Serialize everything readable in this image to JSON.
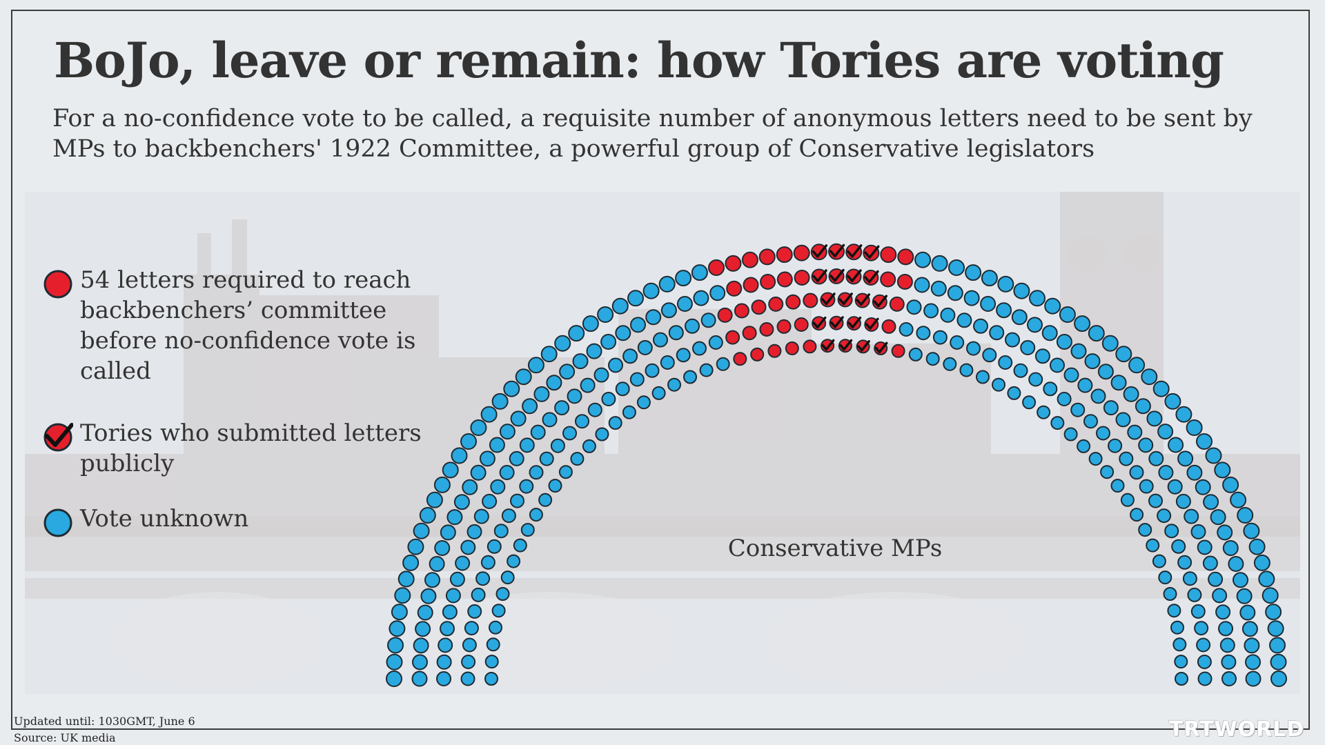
{
  "title": "BoJo, leave or remain: how Tories are voting",
  "subtitle": "For a no-confidence vote to be called, a requisite number of anonymous letters need to be sent by MPs to backbenchers' 1922 Committee, a powerful group of Conservative legislators",
  "legend": {
    "required": {
      "label": "54 letters required to reach backbenchers’ committee before no-confidence vote is called",
      "icon": "red-dot-icon"
    },
    "public": {
      "label": "Tories who submitted letters publicly",
      "icon": "check-dot-icon"
    },
    "unknown": {
      "label": "Vote unknown",
      "icon": "blue-dot-icon"
    }
  },
  "chart_label": "Conservative MPs",
  "footer": {
    "updated": "Updated until: 1030GMT, June 6",
    "source": "Source: UK media"
  },
  "brand": "TRTWORLD",
  "colors": {
    "required": "#e5202c",
    "unknown": "#29a9df",
    "outline": "#1e2a33",
    "check": "#111111",
    "text": "#333333",
    "background": "#e9ecef"
  },
  "chart_data": {
    "type": "parliament",
    "title": "",
    "total_mps": 359,
    "series": [
      {
        "name": "54 letters required to reach backbenchers’ committee before no-confidence vote is called",
        "count": 54
      },
      {
        "name": "Tories who submitted letters publicly",
        "count": 20
      },
      {
        "name": "Vote unknown",
        "count": 305
      }
    ],
    "rows": [
      {
        "seats": 81,
        "red": 12,
        "checked": 4
      },
      {
        "seats": 77,
        "red": 11,
        "checked": 4
      },
      {
        "seats": 72,
        "red": 11,
        "checked": 4
      },
      {
        "seats": 67,
        "red": 10,
        "checked": 4
      },
      {
        "seats": 62,
        "red": 10,
        "checked": 4
      }
    ]
  }
}
